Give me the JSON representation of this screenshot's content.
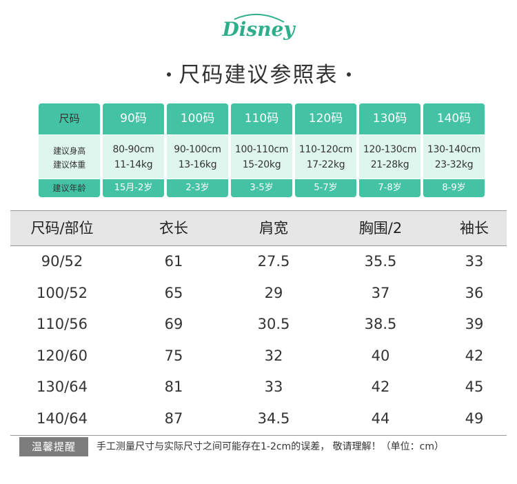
{
  "brand": {
    "logo_text": "Disney",
    "color": "#2fae8c"
  },
  "title": "尺码建议参照表",
  "colors": {
    "accent": "#44c2a4",
    "accent_light": "#dff6ee",
    "header_gray": "#e6e6e6",
    "badge_gray": "#7d7d7d"
  },
  "recommendation": {
    "labels": {
      "size": "尺码",
      "height": "建议身高",
      "weight": "建议体重",
      "age": "建议年龄"
    },
    "sizes": [
      {
        "size": "90码",
        "height": "80-90cm",
        "weight": "11-14kg",
        "age": "15月-2岁"
      },
      {
        "size": "100码",
        "height": "90-100cm",
        "weight": "13-16kg",
        "age": "2-3岁"
      },
      {
        "size": "110码",
        "height": "100-110cm",
        "weight": "15-20kg",
        "age": "3-5岁"
      },
      {
        "size": "120码",
        "height": "110-120cm",
        "weight": "17-22kg",
        "age": "5-7岁"
      },
      {
        "size": "130码",
        "height": "120-130cm",
        "weight": "21-28kg",
        "age": "7-8岁"
      },
      {
        "size": "140码",
        "height": "130-140cm",
        "weight": "23-32kg",
        "age": "8-9岁"
      }
    ]
  },
  "measurements": {
    "headers": [
      "尺码/部位",
      "衣长",
      "肩宽",
      "胸围/2",
      "袖长"
    ],
    "rows": [
      [
        "90/52",
        "61",
        "27.5",
        "35.5",
        "33"
      ],
      [
        "100/52",
        "65",
        "29",
        "37",
        "36"
      ],
      [
        "110/56",
        "69",
        "30.5",
        "38.5",
        "39"
      ],
      [
        "120/60",
        "75",
        "32",
        "40",
        "42"
      ],
      [
        "130/64",
        "81",
        "33",
        "42",
        "45"
      ],
      [
        "140/64",
        "87",
        "34.5",
        "44",
        "49"
      ]
    ]
  },
  "note": {
    "badge": "温馨提醒",
    "text": "手工测量尺寸与实际尺寸之间可能存在1-2cm的误差， 敬请理解！（单位：cm）"
  }
}
